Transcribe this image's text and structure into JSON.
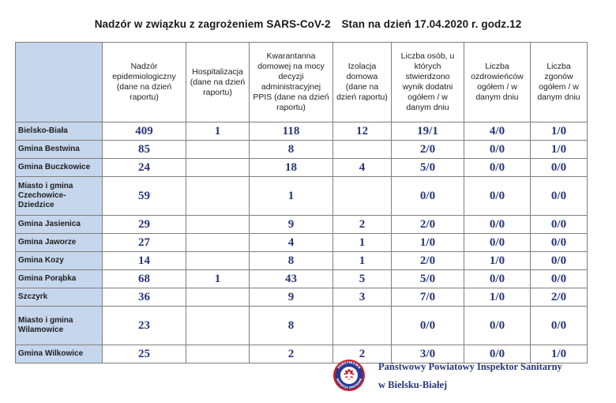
{
  "header": {
    "title": "Nadzór w związku z zagrożeniem SARS-CoV-2",
    "status": "Stan na dzień 17.04.2020 r. godz.12"
  },
  "table": {
    "columns": [
      "Nadzór epidemiologiczny (dane na dzień raportu)",
      "Hospitalizacja (dane na dzień raportu)",
      "Kwarantanna domowej na mocy decyzji administracyjnej PPIS (dane na dzień raportu)",
      "Izolacja domowa (dane na dzień raportu)",
      "Liczba osób, u których stwierdzono wynik dodatni ogółem / w danym dniu",
      "Liczba ozdrowieńców ogółem / w danym dniu",
      "Liczba zgonów ogółem / w danym dniu"
    ],
    "rows": [
      {
        "name": "Bielsko-Biała",
        "values": [
          "409",
          "1",
          "118",
          "12",
          "19/1",
          "4/0",
          "1/0"
        ]
      },
      {
        "name": "Gmina Bestwina",
        "values": [
          "85",
          "",
          "8",
          "",
          "2/0",
          "0/0",
          "1/0"
        ]
      },
      {
        "name": "Gmina Buczkowice",
        "values": [
          "24",
          "",
          "18",
          "4",
          "5/0",
          "0/0",
          "0/0"
        ]
      },
      {
        "name": "Miasto i gmina Czechowice-Dziedzice",
        "values": [
          "59",
          "",
          "1",
          "",
          "0/0",
          "0/0",
          "0/0"
        ]
      },
      {
        "name": "Gmina Jasienica",
        "values": [
          "29",
          "",
          "9",
          "2",
          "2/0",
          "0/0",
          "0/0"
        ]
      },
      {
        "name": "Gmina Jaworze",
        "values": [
          "27",
          "",
          "4",
          "1",
          "1/0",
          "0/0",
          "0/0"
        ]
      },
      {
        "name": "Gmina Kozy",
        "values": [
          "14",
          "",
          "8",
          "1",
          "2/0",
          "1/0",
          "0/0"
        ]
      },
      {
        "name": "Gmina Porąbka",
        "values": [
          "68",
          "1",
          "43",
          "5",
          "5/0",
          "0/0",
          "0/0"
        ]
      },
      {
        "name": "Szczyrk",
        "values": [
          "36",
          "",
          "9",
          "3",
          "7/0",
          "1/0",
          "2/0"
        ]
      },
      {
        "name": "Miasto i gmina Wilamowice",
        "values": [
          "23",
          "",
          "8",
          "",
          "0/0",
          "0/0",
          "0/0"
        ]
      },
      {
        "name": "Gmina Wilkowice",
        "values": [
          "25",
          "",
          "2",
          "2",
          "3/0",
          "0/0",
          "1/0"
        ]
      }
    ]
  },
  "footer": {
    "line1": "Państwowy Powiatowy Inspektor Sanitarny",
    "line2": "w Bielsku-Białej",
    "seal_icon": "sanitary-inspection-seal-icon",
    "seal_text_top": "PAŃSTWOWA",
    "seal_text_bottom": "INSPEKCJA SANITARNA"
  },
  "colors": {
    "name_cell_bg": "#c6d6ec",
    "value_text": "#27367a",
    "grid_line": "#7f7f7f",
    "seal_red": "#c8202e",
    "seal_blue": "#2b3990"
  }
}
